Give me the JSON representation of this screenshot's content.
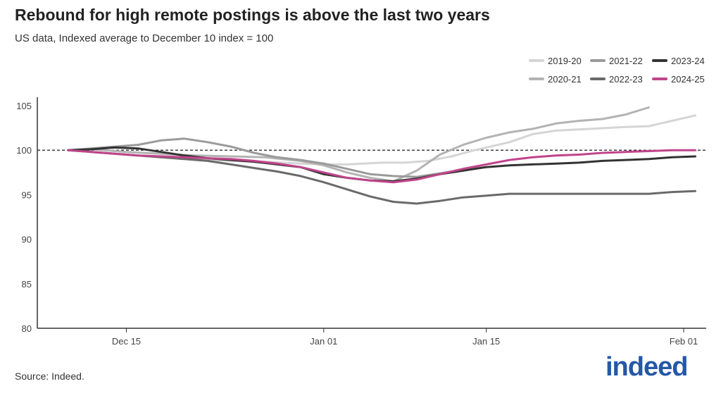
{
  "title": "Rebound for high remote postings is above the last two years",
  "subtitle": "US data, Indexed average to December 10 index = 100",
  "source": "Source: Indeed.",
  "logo_text": "indeed",
  "colors": {
    "brand": "#2557a7",
    "reference_line": "#000000",
    "axis": "#333333"
  },
  "chart_data": {
    "type": "line",
    "x_axis": {
      "type": "date",
      "ticks": [
        "Dec 15",
        "Jan 01",
        "Jan 15",
        "Feb 01"
      ],
      "range": [
        "Dec 10",
        "Feb 03"
      ]
    },
    "y_axis": {
      "ticks": [
        80,
        85,
        90,
        95,
        100,
        105
      ],
      "ylim": [
        80,
        105.5
      ]
    },
    "reference_line": {
      "y": 100,
      "style": "dashed"
    },
    "legend_placement": "top-right",
    "series": [
      {
        "name": "2019-20",
        "color": "#d5d5d5",
        "points": [
          [
            "Dec 10",
            100
          ],
          [
            "Dec 12",
            99.8
          ],
          [
            "Dec 15",
            99.5
          ],
          [
            "Dec 18",
            99.2
          ],
          [
            "Dec 21",
            99.0
          ],
          [
            "Dec 24",
            98.8
          ],
          [
            "Dec 27",
            98.7
          ],
          [
            "Dec 30",
            98.5
          ],
          [
            "Jan 01",
            98.4
          ],
          [
            "Jan 03",
            98.4
          ],
          [
            "Jan 06",
            98.6
          ],
          [
            "Jan 08",
            98.6
          ],
          [
            "Jan 10",
            98.8
          ],
          [
            "Jan 12",
            99.3
          ],
          [
            "Jan 14",
            100.0
          ],
          [
            "Jan 17",
            100.9
          ],
          [
            "Jan 19",
            101.8
          ],
          [
            "Jan 21",
            102.2
          ],
          [
            "Jan 24",
            102.4
          ],
          [
            "Jan 27",
            102.6
          ],
          [
            "Jan 29",
            102.7
          ],
          [
            "Jan 31",
            103.3
          ],
          [
            "Feb 01",
            103.6
          ],
          [
            "Feb 02",
            103.9
          ]
        ]
      },
      {
        "name": "2020-21",
        "color": "#b3b3b3",
        "points": [
          [
            "Dec 10",
            100
          ],
          [
            "Dec 12",
            100.1
          ],
          [
            "Dec 15",
            99.8
          ],
          [
            "Dec 18",
            99.6
          ],
          [
            "Dec 21",
            99.4
          ],
          [
            "Dec 24",
            99.3
          ],
          [
            "Dec 27",
            99.2
          ],
          [
            "Dec 30",
            98.8
          ],
          [
            "Jan 01",
            98.3
          ],
          [
            "Jan 03",
            97.5
          ],
          [
            "Jan 05",
            96.9
          ],
          [
            "Jan 07",
            96.5
          ],
          [
            "Jan 09",
            97.7
          ],
          [
            "Jan 11",
            99.5
          ],
          [
            "Jan 13",
            100.6
          ],
          [
            "Jan 15",
            101.4
          ],
          [
            "Jan 17",
            102.0
          ],
          [
            "Jan 19",
            102.4
          ],
          [
            "Jan 21",
            103.0
          ],
          [
            "Jan 23",
            103.3
          ],
          [
            "Jan 25",
            103.5
          ],
          [
            "Jan 27",
            104.0
          ],
          [
            "Jan 29",
            104.8
          ]
        ]
      },
      {
        "name": "2021-22",
        "color": "#9a9a9a",
        "points": [
          [
            "Dec 10",
            100
          ],
          [
            "Dec 12",
            100.2
          ],
          [
            "Dec 14",
            100.4
          ],
          [
            "Dec 16",
            100.6
          ],
          [
            "Dec 18",
            101.1
          ],
          [
            "Dec 20",
            101.3
          ],
          [
            "Dec 22",
            100.9
          ],
          [
            "Dec 24",
            100.4
          ],
          [
            "Dec 26",
            99.7
          ],
          [
            "Dec 28",
            99.2
          ],
          [
            "Dec 30",
            98.9
          ],
          [
            "Jan 01",
            98.5
          ],
          [
            "Jan 03",
            97.9
          ],
          [
            "Jan 05",
            97.3
          ],
          [
            "Jan 07",
            97.1
          ],
          [
            "Jan 09",
            97.0
          ],
          [
            "Jan 11",
            97.4
          ],
          [
            "Jan 13",
            97.8
          ],
          [
            "Jan 15",
            98.1
          ]
        ]
      },
      {
        "name": "2022-23",
        "color": "#6a6a6a",
        "points": [
          [
            "Dec 10",
            100
          ],
          [
            "Dec 12",
            99.8
          ],
          [
            "Dec 14",
            99.6
          ],
          [
            "Dec 16",
            99.4
          ],
          [
            "Dec 18",
            99.2
          ],
          [
            "Dec 20",
            99.0
          ],
          [
            "Dec 22",
            98.8
          ],
          [
            "Dec 24",
            98.4
          ],
          [
            "Dec 26",
            98.0
          ],
          [
            "Dec 28",
            97.6
          ],
          [
            "Dec 30",
            97.1
          ],
          [
            "Jan 01",
            96.4
          ],
          [
            "Jan 03",
            95.6
          ],
          [
            "Jan 05",
            94.8
          ],
          [
            "Jan 07",
            94.2
          ],
          [
            "Jan 09",
            94.0
          ],
          [
            "Jan 11",
            94.3
          ],
          [
            "Jan 13",
            94.7
          ],
          [
            "Jan 15",
            94.9
          ],
          [
            "Jan 17",
            95.1
          ],
          [
            "Jan 20",
            95.1
          ],
          [
            "Jan 23",
            95.1
          ],
          [
            "Jan 26",
            95.1
          ],
          [
            "Jan 29",
            95.1
          ],
          [
            "Jan 31",
            95.3
          ],
          [
            "Feb 02",
            95.4
          ]
        ]
      },
      {
        "name": "2023-24",
        "color": "#333333",
        "points": [
          [
            "Dec 10",
            100
          ],
          [
            "Dec 12",
            100.1
          ],
          [
            "Dec 14",
            100.3
          ],
          [
            "Dec 16",
            100.2
          ],
          [
            "Dec 18",
            99.8
          ],
          [
            "Dec 20",
            99.4
          ],
          [
            "Dec 22",
            99.1
          ],
          [
            "Dec 24",
            98.9
          ],
          [
            "Dec 26",
            98.7
          ],
          [
            "Dec 28",
            98.4
          ],
          [
            "Dec 30",
            98.1
          ],
          [
            "Jan 01",
            97.3
          ],
          [
            "Jan 03",
            96.9
          ],
          [
            "Jan 05",
            96.6
          ],
          [
            "Jan 07",
            96.5
          ],
          [
            "Jan 09",
            96.8
          ],
          [
            "Jan 11",
            97.3
          ],
          [
            "Jan 13",
            97.7
          ],
          [
            "Jan 15",
            98.1
          ],
          [
            "Jan 17",
            98.3
          ],
          [
            "Jan 19",
            98.4
          ],
          [
            "Jan 21",
            98.5
          ],
          [
            "Jan 23",
            98.6
          ],
          [
            "Jan 25",
            98.8
          ],
          [
            "Jan 27",
            98.9
          ],
          [
            "Jan 29",
            99.0
          ],
          [
            "Jan 31",
            99.2
          ],
          [
            "Feb 02",
            99.3
          ]
        ]
      },
      {
        "name": "2024-25",
        "color": "#c0448b",
        "points": [
          [
            "Dec 10",
            100
          ],
          [
            "Dec 12",
            99.8
          ],
          [
            "Dec 14",
            99.6
          ],
          [
            "Dec 16",
            99.4
          ],
          [
            "Dec 18",
            99.3
          ],
          [
            "Dec 20",
            99.2
          ],
          [
            "Dec 22",
            99.1
          ],
          [
            "Dec 24",
            99.0
          ],
          [
            "Dec 26",
            98.8
          ],
          [
            "Dec 28",
            98.5
          ],
          [
            "Dec 30",
            98.1
          ],
          [
            "Jan 01",
            97.5
          ],
          [
            "Jan 03",
            96.9
          ],
          [
            "Jan 05",
            96.6
          ],
          [
            "Jan 07",
            96.4
          ],
          [
            "Jan 09",
            96.7
          ],
          [
            "Jan 11",
            97.3
          ],
          [
            "Jan 13",
            97.9
          ],
          [
            "Jan 15",
            98.4
          ],
          [
            "Jan 17",
            98.9
          ],
          [
            "Jan 19",
            99.2
          ],
          [
            "Jan 21",
            99.4
          ],
          [
            "Jan 23",
            99.5
          ],
          [
            "Jan 25",
            99.7
          ],
          [
            "Jan 27",
            99.8
          ],
          [
            "Jan 29",
            99.9
          ],
          [
            "Jan 31",
            100.0
          ],
          [
            "Feb 02",
            100.0
          ]
        ]
      }
    ]
  }
}
